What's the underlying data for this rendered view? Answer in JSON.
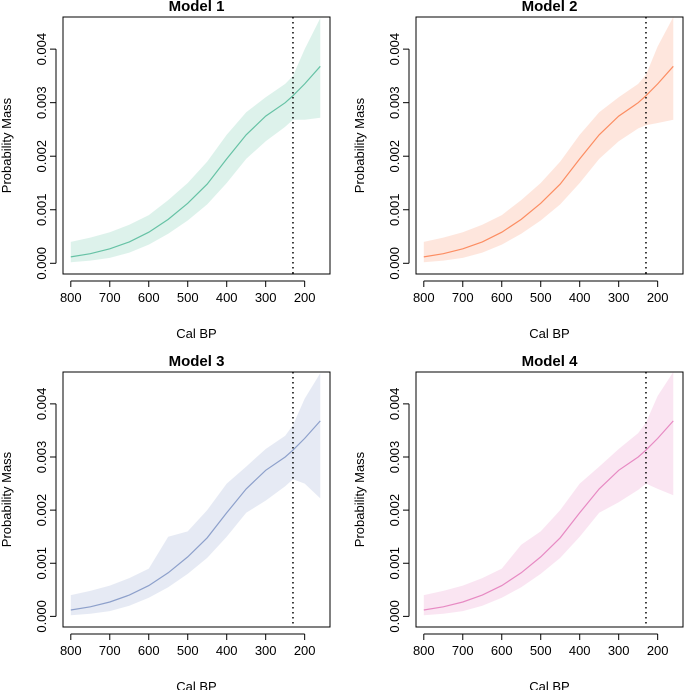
{
  "colors": {
    "model1": "#66c2a5",
    "model2": "#fc8d62",
    "model3": "#8da0cb",
    "model4": "#e78ac3"
  },
  "chart_data": [
    {
      "type": "line",
      "title": "Model 1",
      "xlabel": "Cal BP",
      "ylabel": "Probability Mass",
      "xlim": [
        820,
        135
      ],
      "ylim": [
        -0.0002,
        0.0046
      ],
      "xticks": [
        800,
        700,
        600,
        500,
        400,
        300,
        200
      ],
      "yticks": [
        "0.000",
        "0.001",
        "0.002",
        "0.003",
        "0.004"
      ],
      "vline": 230,
      "color_key": "model1",
      "x": [
        800,
        750,
        700,
        650,
        600,
        550,
        500,
        450,
        400,
        350,
        300,
        250,
        230,
        200,
        160
      ],
      "y": [
        0.00012,
        0.00018,
        0.00027,
        0.0004,
        0.00058,
        0.00082,
        0.00112,
        0.00148,
        0.00195,
        0.0024,
        0.00275,
        0.003,
        0.00313,
        0.00335,
        0.00368
      ],
      "lower": [
        2e-05,
        5e-05,
        0.0001,
        0.0002,
        0.00035,
        0.00055,
        0.0008,
        0.0011,
        0.0015,
        0.00195,
        0.00228,
        0.00255,
        0.00268,
        0.00268,
        0.00272
      ],
      "upper": [
        0.0004,
        0.00048,
        0.00058,
        0.00072,
        0.0009,
        0.00118,
        0.0015,
        0.0019,
        0.0024,
        0.00282,
        0.0031,
        0.00335,
        0.0035,
        0.004,
        0.00458
      ]
    },
    {
      "type": "line",
      "title": "Model 2",
      "xlabel": "Cal BP",
      "ylabel": "Probability Mass",
      "xlim": [
        820,
        135
      ],
      "ylim": [
        -0.0002,
        0.0046
      ],
      "xticks": [
        800,
        700,
        600,
        500,
        400,
        300,
        200
      ],
      "yticks": [
        "0.000",
        "0.001",
        "0.002",
        "0.003",
        "0.004"
      ],
      "vline": 230,
      "color_key": "model2",
      "x": [
        800,
        750,
        700,
        650,
        600,
        550,
        500,
        450,
        400,
        350,
        300,
        250,
        230,
        200,
        160
      ],
      "y": [
        0.00012,
        0.00018,
        0.00027,
        0.0004,
        0.00058,
        0.00082,
        0.00112,
        0.00148,
        0.00195,
        0.0024,
        0.00275,
        0.003,
        0.00313,
        0.00335,
        0.00368
      ],
      "lower": [
        2e-05,
        5e-05,
        0.0001,
        0.0002,
        0.00035,
        0.00055,
        0.0008,
        0.0011,
        0.0015,
        0.00195,
        0.00228,
        0.00252,
        0.00258,
        0.00262,
        0.00268
      ],
      "upper": [
        0.0004,
        0.00048,
        0.00058,
        0.00072,
        0.0009,
        0.00118,
        0.0015,
        0.0019,
        0.0024,
        0.00282,
        0.0031,
        0.00335,
        0.00352,
        0.00405,
        0.0046
      ]
    },
    {
      "type": "line",
      "title": "Model 3",
      "xlabel": "Cal BP",
      "ylabel": "Probability Mass",
      "xlim": [
        820,
        135
      ],
      "ylim": [
        -0.0002,
        0.0046
      ],
      "xticks": [
        800,
        700,
        600,
        500,
        400,
        300,
        200
      ],
      "yticks": [
        "0.000",
        "0.001",
        "0.002",
        "0.003",
        "0.004"
      ],
      "vline": 230,
      "color_key": "model3",
      "x": [
        800,
        750,
        700,
        650,
        600,
        550,
        500,
        450,
        400,
        350,
        300,
        250,
        230,
        200,
        160
      ],
      "y": [
        0.00012,
        0.00018,
        0.00027,
        0.0004,
        0.00058,
        0.00082,
        0.00112,
        0.00148,
        0.00195,
        0.0024,
        0.00275,
        0.003,
        0.00313,
        0.00335,
        0.00368
      ],
      "lower": [
        2e-05,
        5e-05,
        0.0001,
        0.0002,
        0.00035,
        0.00055,
        0.0008,
        0.0011,
        0.0015,
        0.00195,
        0.00218,
        0.00245,
        0.00258,
        0.0025,
        0.00222
      ],
      "upper": [
        0.0004,
        0.00048,
        0.00058,
        0.00072,
        0.0009,
        0.0015,
        0.0016,
        0.002,
        0.0025,
        0.00282,
        0.00315,
        0.0034,
        0.0036,
        0.0041,
        0.00458
      ]
    },
    {
      "type": "line",
      "title": "Model 4",
      "xlabel": "Cal BP",
      "ylabel": "Probability Mass",
      "xlim": [
        820,
        135
      ],
      "ylim": [
        -0.0002,
        0.0046
      ],
      "xticks": [
        800,
        700,
        600,
        500,
        400,
        300,
        200
      ],
      "yticks": [
        "0.000",
        "0.001",
        "0.002",
        "0.003",
        "0.004"
      ],
      "vline": 230,
      "color_key": "model4",
      "x": [
        800,
        750,
        700,
        650,
        600,
        550,
        500,
        450,
        400,
        350,
        300,
        250,
        230,
        200,
        160
      ],
      "y": [
        0.00012,
        0.00018,
        0.00027,
        0.0004,
        0.00058,
        0.00082,
        0.00112,
        0.00148,
        0.00195,
        0.0024,
        0.00275,
        0.003,
        0.00313,
        0.00335,
        0.00368
      ],
      "lower": [
        2e-05,
        5e-05,
        0.0001,
        0.0002,
        0.00035,
        0.00055,
        0.0008,
        0.0011,
        0.0015,
        0.00195,
        0.00215,
        0.00238,
        0.0025,
        0.0024,
        0.00228
      ],
      "upper": [
        0.0004,
        0.00048,
        0.00058,
        0.00072,
        0.0009,
        0.00135,
        0.0016,
        0.002,
        0.0025,
        0.00282,
        0.00315,
        0.00345,
        0.00365,
        0.00415,
        0.0046
      ]
    }
  ]
}
